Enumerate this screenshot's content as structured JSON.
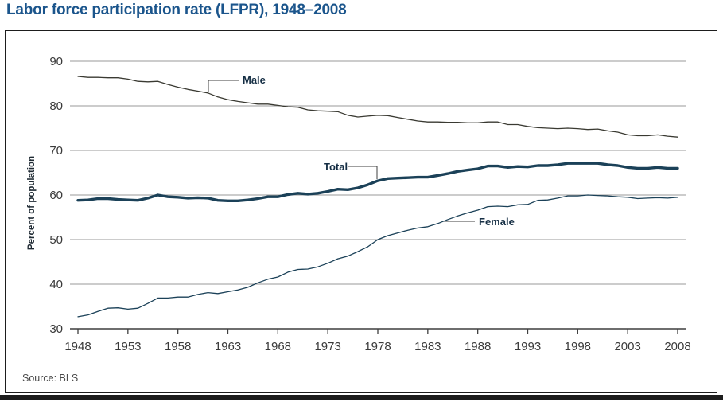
{
  "title": "Labor force participation rate (LFPR), 1948–2008",
  "source": "Source: BLS",
  "colors": {
    "title": "#1b558c",
    "frame": "#1d1d1d",
    "grid": "#9a9a9a",
    "axis": "#3f3f3f",
    "tick_label": "#3a3a3a",
    "series_label": "#152e44",
    "source_text": "#4a4a4a",
    "navy_line": "#1b4158",
    "male_line": "#3a3a32"
  },
  "chart_data": {
    "type": "line",
    "title": "Labor force participation rate (LFPR), 1948–2008",
    "xlabel": "",
    "ylabel": "Percent of population",
    "ylim": [
      30,
      90
    ],
    "yticks": [
      30,
      40,
      50,
      60,
      70,
      80,
      90
    ],
    "xticks": [
      1948,
      1953,
      1958,
      1963,
      1968,
      1973,
      1978,
      1983,
      1988,
      1993,
      1998,
      2003,
      2008
    ],
    "grid": "horizontal",
    "legend": "inline-labels",
    "x": [
      1948,
      1949,
      1950,
      1951,
      1952,
      1953,
      1954,
      1955,
      1956,
      1957,
      1958,
      1959,
      1960,
      1961,
      1962,
      1963,
      1964,
      1965,
      1966,
      1967,
      1968,
      1969,
      1970,
      1971,
      1972,
      1973,
      1974,
      1975,
      1976,
      1977,
      1978,
      1979,
      1980,
      1981,
      1982,
      1983,
      1984,
      1985,
      1986,
      1987,
      1988,
      1989,
      1990,
      1991,
      1992,
      1993,
      1994,
      1995,
      1996,
      1997,
      1998,
      1999,
      2000,
      2001,
      2002,
      2003,
      2004,
      2005,
      2006,
      2007,
      2008
    ],
    "series": [
      {
        "name": "Male",
        "color": "#3a3a32",
        "stroke_width": 1.3,
        "values": [
          86.6,
          86.4,
          86.4,
          86.3,
          86.3,
          86.0,
          85.5,
          85.4,
          85.5,
          84.8,
          84.2,
          83.7,
          83.3,
          82.9,
          82.0,
          81.4,
          81.0,
          80.7,
          80.4,
          80.4,
          80.1,
          79.8,
          79.7,
          79.1,
          78.9,
          78.8,
          78.7,
          77.9,
          77.5,
          77.7,
          77.9,
          77.8,
          77.4,
          77.0,
          76.6,
          76.4,
          76.4,
          76.3,
          76.3,
          76.2,
          76.2,
          76.4,
          76.4,
          75.8,
          75.8,
          75.4,
          75.1,
          75.0,
          74.9,
          75.0,
          74.9,
          74.7,
          74.8,
          74.4,
          74.1,
          73.5,
          73.3,
          73.3,
          73.5,
          73.2,
          73.0
        ]
      },
      {
        "name": "Total",
        "color": "#1b4158",
        "stroke_width": 3.4,
        "values": [
          58.8,
          58.9,
          59.2,
          59.2,
          59.0,
          58.9,
          58.8,
          59.3,
          60.0,
          59.6,
          59.5,
          59.3,
          59.4,
          59.3,
          58.8,
          58.7,
          58.7,
          58.9,
          59.2,
          59.6,
          59.6,
          60.1,
          60.4,
          60.2,
          60.4,
          60.8,
          61.3,
          61.2,
          61.6,
          62.3,
          63.2,
          63.7,
          63.8,
          63.9,
          64.0,
          64.0,
          64.4,
          64.8,
          65.3,
          65.6,
          65.9,
          66.5,
          66.5,
          66.2,
          66.4,
          66.3,
          66.6,
          66.6,
          66.8,
          67.1,
          67.1,
          67.1,
          67.1,
          66.8,
          66.6,
          66.2,
          66.0,
          66.0,
          66.2,
          66.0,
          66.0
        ]
      },
      {
        "name": "Female",
        "color": "#1b4158",
        "stroke_width": 1.3,
        "values": [
          32.7,
          33.1,
          33.9,
          34.6,
          34.7,
          34.4,
          34.6,
          35.7,
          36.9,
          36.9,
          37.1,
          37.1,
          37.7,
          38.1,
          37.9,
          38.3,
          38.7,
          39.3,
          40.3,
          41.1,
          41.6,
          42.7,
          43.3,
          43.4,
          43.9,
          44.7,
          45.7,
          46.3,
          47.3,
          48.4,
          50.0,
          50.9,
          51.5,
          52.1,
          52.6,
          52.9,
          53.6,
          54.5,
          55.3,
          56.0,
          56.6,
          57.4,
          57.5,
          57.4,
          57.8,
          57.9,
          58.8,
          58.9,
          59.3,
          59.8,
          59.8,
          60.0,
          59.9,
          59.8,
          59.6,
          59.5,
          59.2,
          59.3,
          59.4,
          59.3,
          59.5
        ]
      }
    ]
  }
}
